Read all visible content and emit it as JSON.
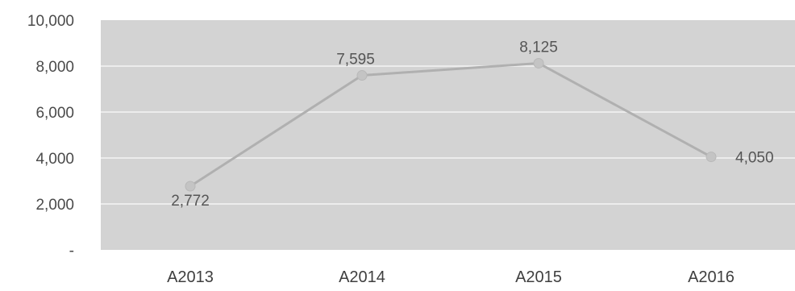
{
  "chart_data": {
    "type": "line",
    "categories": [
      "A2013",
      "A2014",
      "A2015",
      "A2016"
    ],
    "series": [
      {
        "values": [
          2772,
          7595,
          8125,
          4050
        ],
        "data_labels": [
          "2,772",
          "7,595",
          "8,125",
          "4,050"
        ],
        "color": "#b0b0b0"
      }
    ],
    "y_ticks": [
      {
        "value": 0,
        "label": "-"
      },
      {
        "value": 2000,
        "label": "2,000"
      },
      {
        "value": 4000,
        "label": "4,000"
      },
      {
        "value": 6000,
        "label": "6,000"
      },
      {
        "value": 8000,
        "label": "8,000"
      },
      {
        "value": 10000,
        "label": "10,000"
      }
    ],
    "ylim": [
      0,
      10000
    ],
    "grid": true,
    "legend": "none",
    "plot_background": "#d3d3d3",
    "grid_color": "#ececec",
    "marker_color": "#c4c4c4"
  }
}
